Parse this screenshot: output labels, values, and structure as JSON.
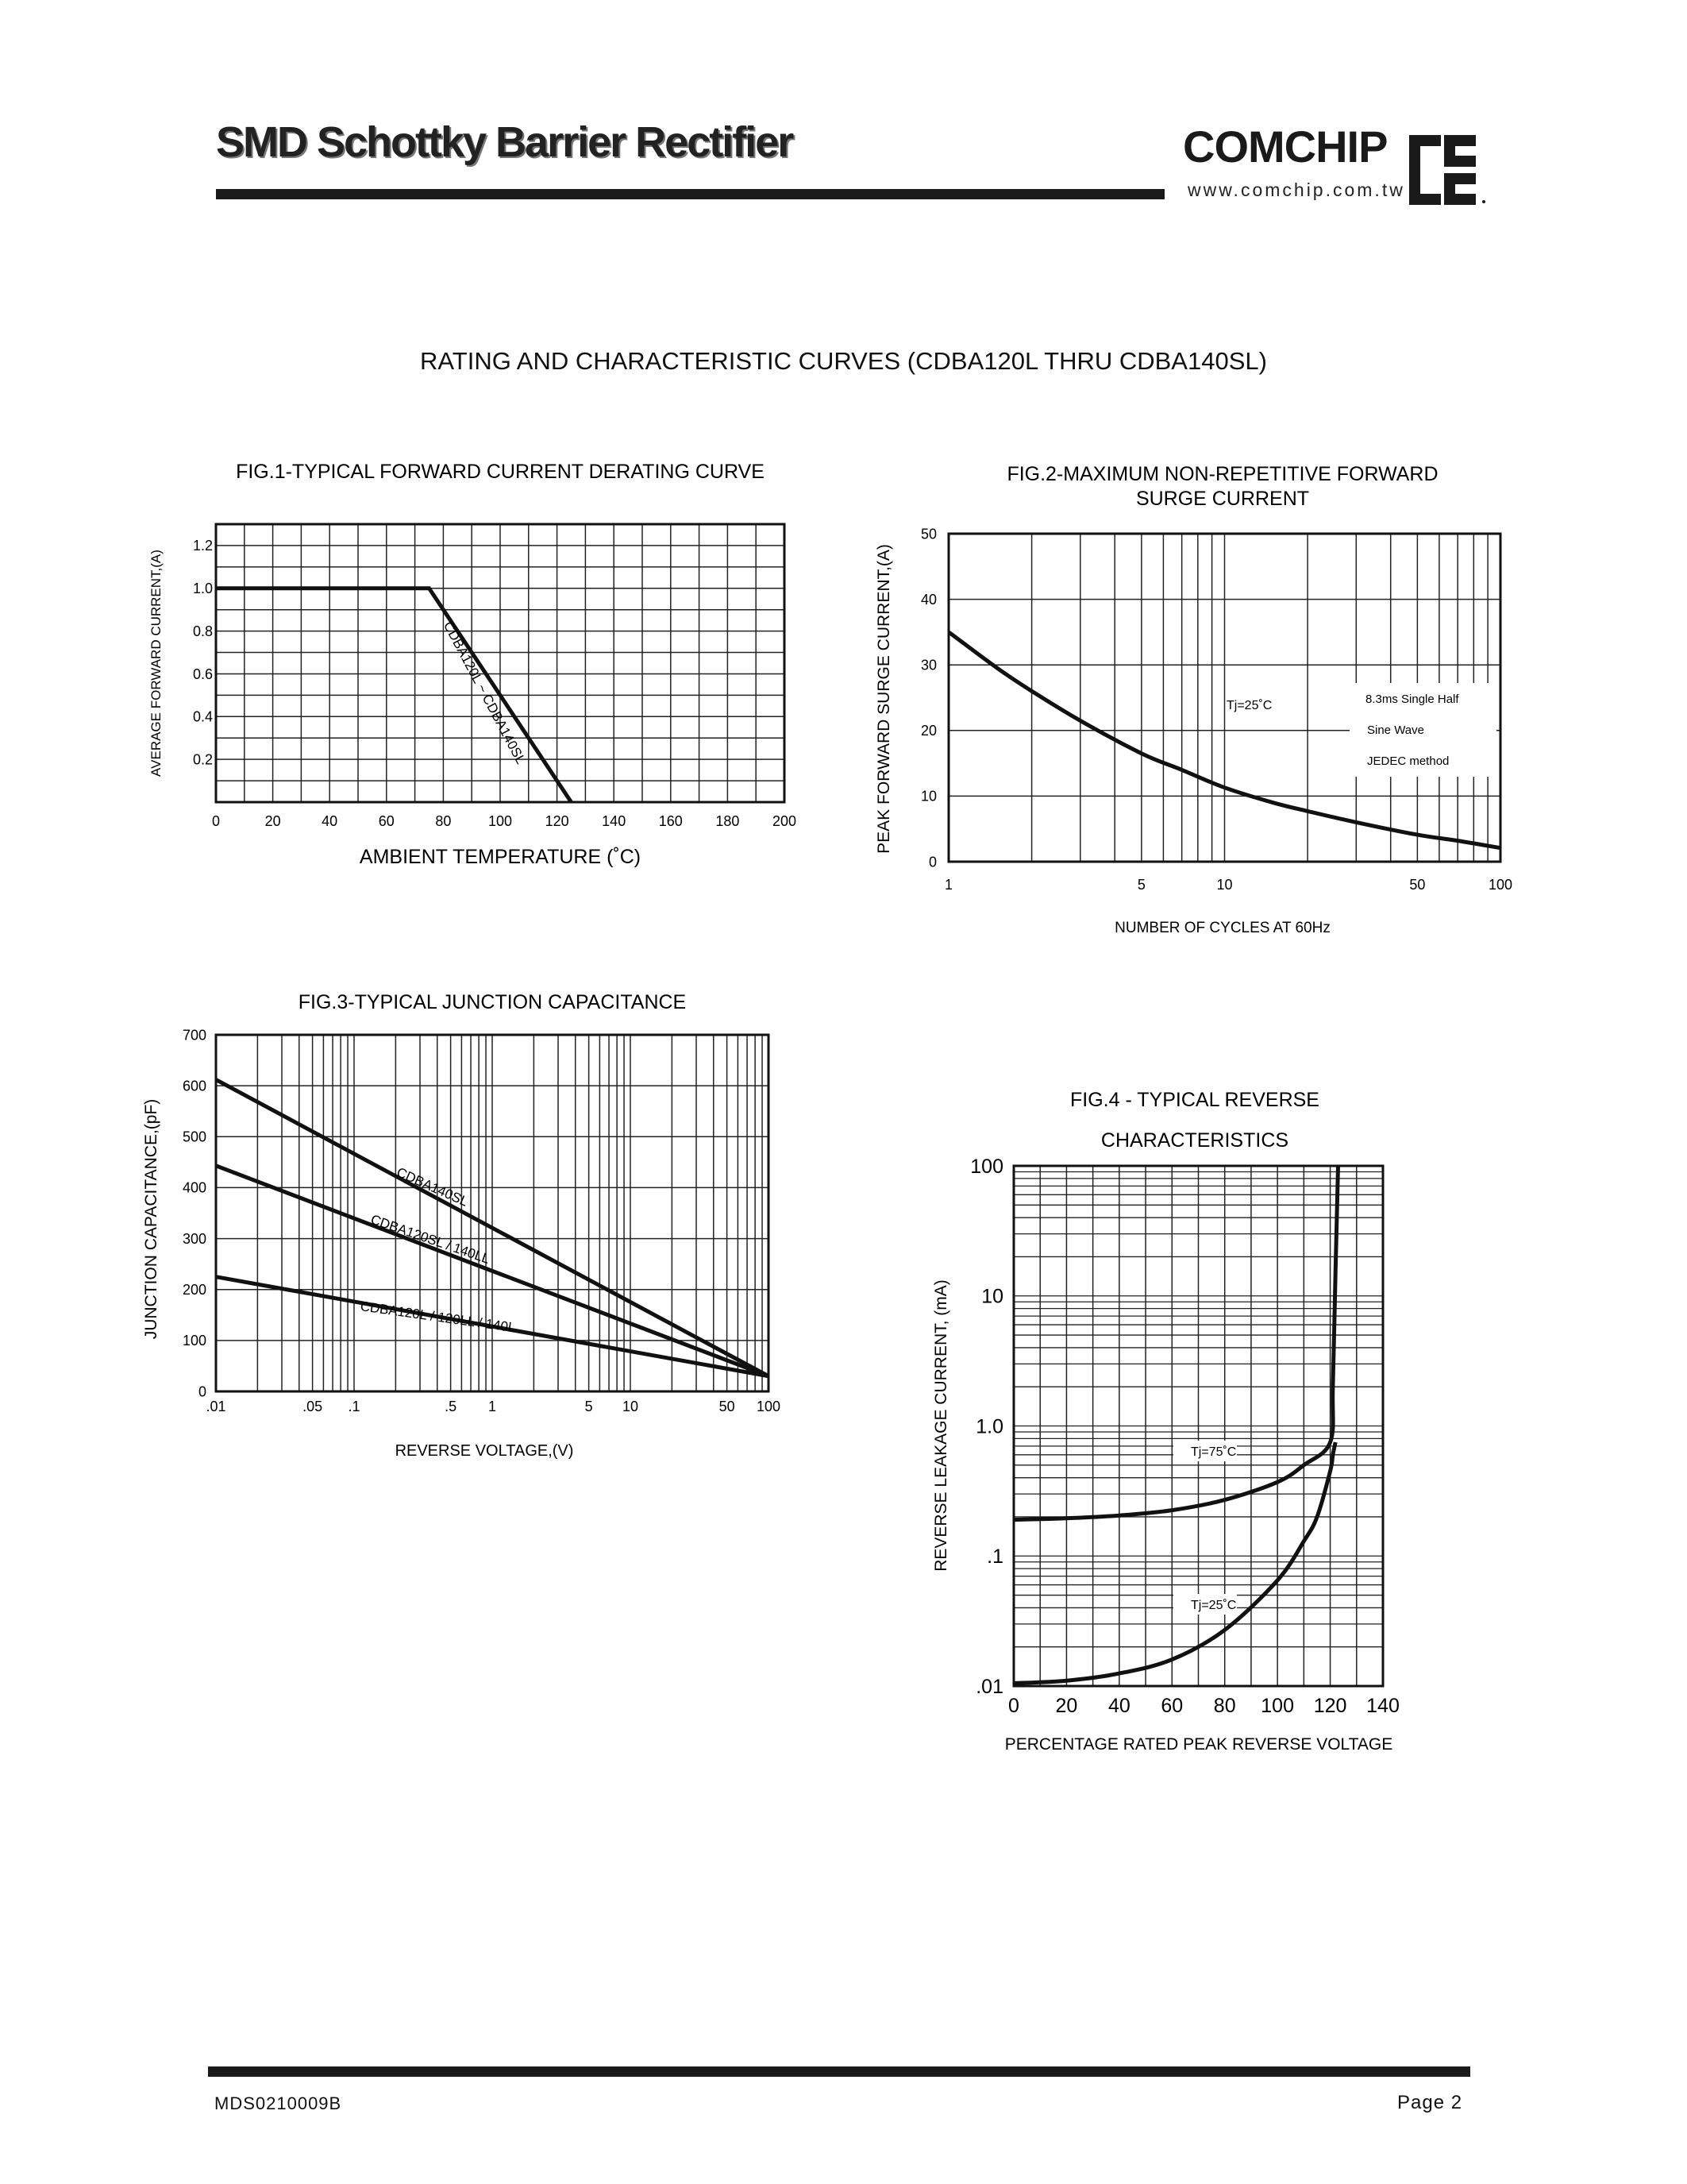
{
  "header": {
    "title": "SMD Schottky Barrier Rectifier",
    "brand": "COMCHIP",
    "url": "www.comchip.com.tw"
  },
  "section_title": "RATING AND CHARACTERISTIC CURVES (CDBA120L THRU CDBA140SL)",
  "footer": {
    "doc_code": "MDS0210009B",
    "page": "Page 2"
  },
  "chart_data": [
    {
      "id": "fig1",
      "type": "line",
      "title": "FIG.1-TYPICAL FORWARD CURRENT DERATING CURVE",
      "xlabel": "AMBIENT TEMPERATURE (˚C)",
      "ylabel": "AVERAGE FORWARD CURRENT,(A)",
      "xlim": [
        0,
        200
      ],
      "ylim": [
        0,
        1.3
      ],
      "xticks": [
        0,
        20,
        40,
        60,
        80,
        100,
        120,
        140,
        160,
        180,
        200
      ],
      "xticklabels": [
        "0",
        "20",
        "40",
        "60",
        "80",
        "100",
        "120",
        "140",
        "160",
        "180",
        "200"
      ],
      "yticks": [
        0.2,
        0.4,
        0.6,
        0.8,
        1.0,
        1.2
      ],
      "yticklabels": [
        "0.2",
        "0.4",
        "0.6",
        "0.8",
        "1.0",
        "1.2"
      ],
      "grid": true,
      "series": [
        {
          "name": "CDBA120L ~ CDBA140SL",
          "x": [
            0,
            75,
            125
          ],
          "y": [
            1.0,
            1.0,
            0.0
          ]
        }
      ]
    },
    {
      "id": "fig2",
      "type": "line",
      "title": "FIG.2-MAXIMUM NON-REPETITIVE FORWARD SURGE CURRENT",
      "xlabel": "NUMBER OF CYCLES AT 60Hz",
      "ylabel": "PEAK FORWARD SURGE CURRENT,(A)",
      "xscale": "log",
      "xlim": [
        1,
        100
      ],
      "ylim": [
        0,
        50
      ],
      "xticks": [
        1,
        5,
        10,
        50,
        100
      ],
      "xticklabels": [
        "1",
        "5",
        "10",
        "50",
        "100"
      ],
      "yticks": [
        0,
        10,
        20,
        30,
        40,
        50
      ],
      "yticklabels": [
        "0",
        "10",
        "20",
        "30",
        "40",
        "50"
      ],
      "grid": true,
      "annotations": [
        "Tj=25˚C",
        "8.3ms Single Half",
        "Sine Wave",
        "JEDEC method"
      ],
      "series": [
        {
          "x": [
            1,
            1.5,
            2,
            3,
            5,
            7,
            10,
            15,
            20,
            30,
            50,
            70,
            100
          ],
          "y": [
            35,
            29.5,
            26,
            21.5,
            16.5,
            14,
            11.3,
            9,
            7.7,
            6,
            4.1,
            3.2,
            2.1
          ]
        }
      ]
    },
    {
      "id": "fig3",
      "type": "line",
      "title": "FIG.3-TYPICAL JUNCTION CAPACITANCE",
      "xlabel": "REVERSE VOLTAGE,(V)",
      "ylabel": "JUNCTION CAPACITANCE,(pF)",
      "xscale": "log",
      "xlim": [
        0.01,
        100
      ],
      "ylim": [
        0,
        700
      ],
      "xticks": [
        0.01,
        0.05,
        0.1,
        0.5,
        1,
        5,
        10,
        50,
        100
      ],
      "xticklabels": [
        ".01",
        ".05",
        ".1",
        ".5",
        "1",
        "5",
        "10",
        "50",
        "100"
      ],
      "yticks": [
        0,
        100,
        200,
        300,
        400,
        500,
        600,
        700
      ],
      "yticklabels": [
        "0",
        "100",
        "200",
        "300",
        "400",
        "500",
        "600",
        "700"
      ],
      "grid": true,
      "series": [
        {
          "name": "CDBA140SL",
          "x": [
            0.01,
            100
          ],
          "y": [
            612,
            30
          ]
        },
        {
          "name": "CDBA120SL / 140LL",
          "x": [
            0.01,
            100
          ],
          "y": [
            443,
            30
          ]
        },
        {
          "name": "CDBA120L / 120LL / 140L",
          "x": [
            0.01,
            100
          ],
          "y": [
            225,
            30
          ]
        }
      ]
    },
    {
      "id": "fig4",
      "type": "line",
      "title": "FIG.4 - TYPICAL REVERSE CHARACTERISTICS",
      "title_lines": [
        "FIG.4 - TYPICAL REVERSE",
        "CHARACTERISTICS"
      ],
      "xlabel": "PERCENTAGE RATED PEAK REVERSE VOLTAGE",
      "ylabel": "REVERSE LEAKAGE CURRENT, (mA)",
      "yscale": "log",
      "xlim": [
        0,
        140
      ],
      "ylim": [
        0.01,
        100
      ],
      "xticks": [
        0,
        20,
        40,
        60,
        80,
        100,
        120,
        140
      ],
      "xticklabels": [
        "0",
        "20",
        "40",
        "60",
        "80",
        "100",
        "120",
        "140"
      ],
      "yticks": [
        0.01,
        0.1,
        1,
        10,
        100
      ],
      "yticklabels": [
        ".01",
        ".1",
        "1.0",
        "10",
        "100"
      ],
      "grid": true,
      "series": [
        {
          "name": "Tj=75˚C",
          "x": [
            0,
            20,
            40,
            60,
            80,
            100,
            110,
            120,
            121,
            122,
            123
          ],
          "y": [
            0.19,
            0.195,
            0.205,
            0.225,
            0.27,
            0.37,
            0.5,
            0.75,
            2,
            15,
            100
          ]
        },
        {
          "name": "Tj=25˚C",
          "x": [
            0,
            20,
            40,
            60,
            80,
            100,
            110,
            115,
            120,
            121,
            122
          ],
          "y": [
            0.0105,
            0.011,
            0.0125,
            0.016,
            0.027,
            0.065,
            0.13,
            0.2,
            0.45,
            0.6,
            0.75
          ]
        }
      ]
    }
  ]
}
